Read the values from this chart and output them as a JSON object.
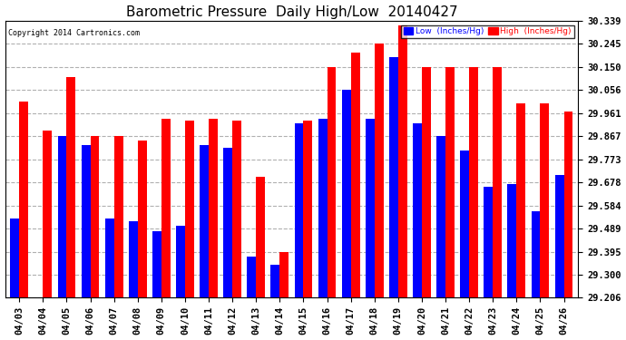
{
  "title": "Barometric Pressure  Daily High/Low  20140427",
  "copyright": "Copyright 2014 Cartronics.com",
  "legend_low": "Low  (Inches/Hg)",
  "legend_high": "High  (Inches/Hg)",
  "dates": [
    "04/03",
    "04/04",
    "04/05",
    "04/06",
    "04/07",
    "04/08",
    "04/09",
    "04/10",
    "04/11",
    "04/12",
    "04/13",
    "04/14",
    "04/15",
    "04/16",
    "04/17",
    "04/18",
    "04/19",
    "04/20",
    "04/21",
    "04/22",
    "04/23",
    "04/24",
    "04/25",
    "04/26"
  ],
  "low": [
    29.53,
    29.206,
    29.867,
    29.83,
    29.53,
    29.52,
    29.48,
    29.5,
    29.83,
    29.82,
    29.375,
    29.34,
    29.92,
    29.94,
    30.056,
    29.94,
    30.19,
    29.92,
    29.87,
    29.81,
    29.66,
    29.67,
    29.56,
    29.71
  ],
  "high": [
    30.01,
    29.89,
    30.11,
    29.87,
    29.867,
    29.85,
    29.94,
    29.93,
    29.94,
    29.93,
    29.7,
    29.395,
    29.93,
    30.15,
    30.21,
    30.245,
    30.32,
    30.15,
    30.15,
    30.15,
    30.15,
    30.0,
    30.0,
    29.97
  ],
  "ylim": [
    29.206,
    30.339
  ],
  "yticks": [
    29.206,
    29.3,
    29.395,
    29.489,
    29.584,
    29.678,
    29.773,
    29.867,
    29.961,
    30.056,
    30.15,
    30.245,
    30.339
  ],
  "bg_color": "#ffffff",
  "low_color": "#0000ff",
  "high_color": "#ff0000",
  "grid_color": "#b0b0b0",
  "title_fontsize": 11,
  "tick_fontsize": 7.5,
  "bar_width": 0.38
}
